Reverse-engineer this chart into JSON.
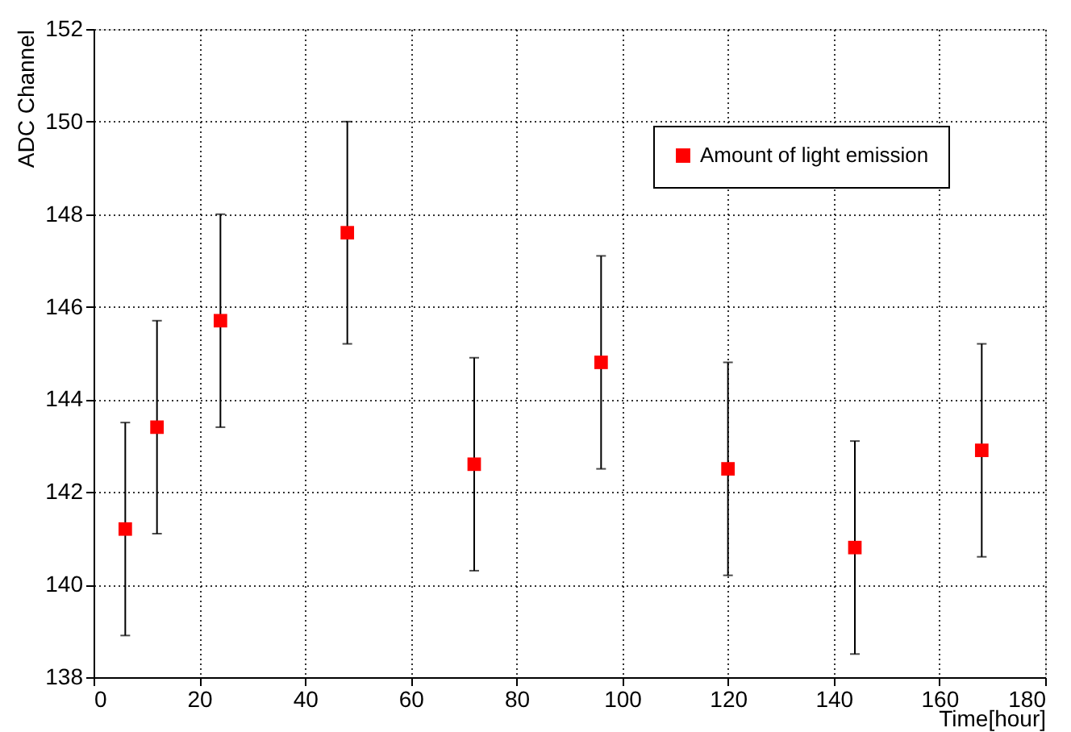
{
  "chart_data": {
    "type": "scatter",
    "xlabel": "Time[hour]",
    "ylabel": "ADC Channel",
    "x": [
      6,
      12,
      24,
      48,
      72,
      96,
      120,
      144,
      168
    ],
    "series": [
      {
        "name": "Amount of light emission",
        "color": "#ff0000",
        "values": [
          141.2,
          143.4,
          145.7,
          147.6,
          142.6,
          144.8,
          142.5,
          140.8,
          142.9
        ],
        "errors": [
          2.3,
          2.3,
          2.3,
          2.4,
          2.3,
          2.3,
          2.3,
          2.3,
          2.3
        ]
      }
    ],
    "xlim": [
      0,
      180
    ],
    "xticks": [
      0,
      20,
      40,
      60,
      80,
      100,
      120,
      140,
      160,
      180
    ],
    "ylim": [
      138,
      152
    ],
    "yticks": [
      138,
      140,
      142,
      144,
      146,
      148,
      150,
      152
    ],
    "grid": true,
    "legend": "top right",
    "marker": "square"
  }
}
